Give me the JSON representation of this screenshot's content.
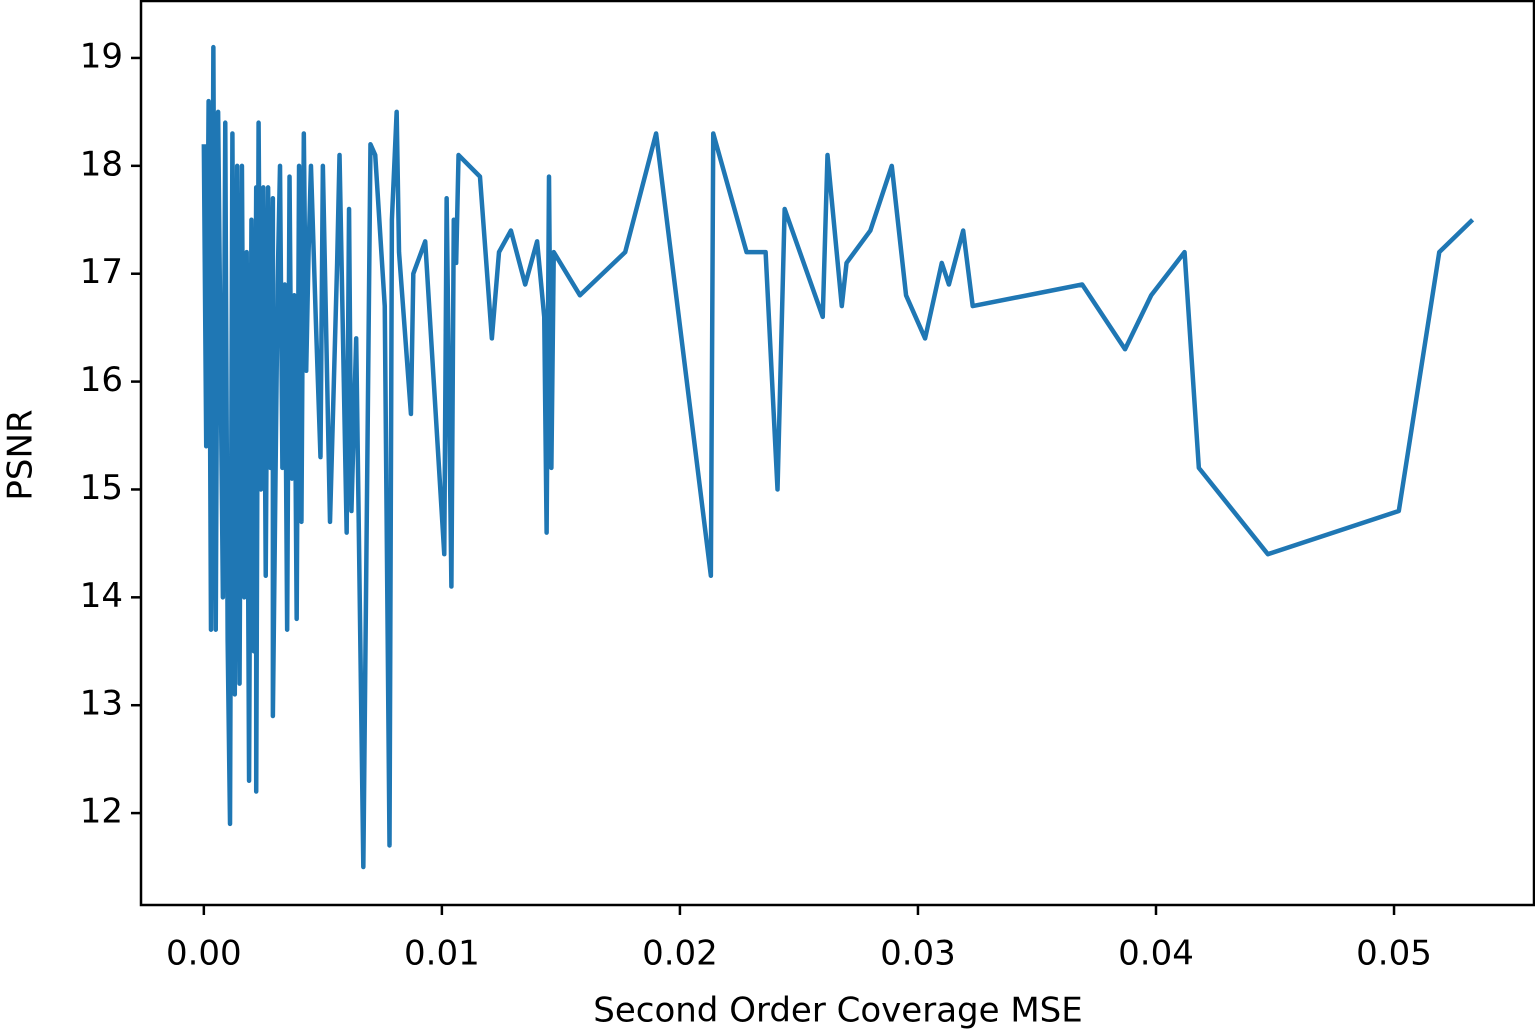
{
  "chart_data": {
    "type": "line",
    "xlabel": "Second Order Coverage MSE",
    "ylabel": "PSNR",
    "xlim": [
      -0.00264,
      0.05588
    ],
    "ylim": [
      11.148,
      19.528
    ],
    "xticks": [
      {
        "value": 0,
        "label": "0.00"
      },
      0.01,
      0.02,
      0.03,
      0.04,
      0.05
    ],
    "yticks": [
      12,
      13,
      14,
      15,
      16,
      17,
      18,
      19
    ],
    "grid": false,
    "x": [
      0.0,
      0.0001,
      0.0002,
      0.0003,
      0.0004,
      0.0005,
      0.0006,
      0.0008,
      0.0009,
      0.001,
      0.0011,
      0.0012,
      0.0013,
      0.0014,
      0.0015,
      0.0016,
      0.0017,
      0.0018,
      0.0019,
      0.002,
      0.0021,
      0.0022,
      0.0022,
      0.0023,
      0.0024,
      0.0025,
      0.0026,
      0.0027,
      0.0028,
      0.0029,
      0.0029,
      0.0031,
      0.0032,
      0.0033,
      0.0034,
      0.0035,
      0.0036,
      0.0037,
      0.0038,
      0.0039,
      0.004,
      0.0041,
      0.0042,
      0.0043,
      0.0044,
      0.0045,
      0.0047,
      0.0049,
      0.005,
      0.0053,
      0.0056,
      0.0057,
      0.006,
      0.0061,
      0.0062,
      0.0064,
      0.0065,
      0.0067,
      0.007,
      0.0072,
      0.0076,
      0.0078,
      0.0079,
      0.0081,
      0.0082,
      0.0087,
      0.0088,
      0.0093,
      0.0101,
      0.0102,
      0.0104,
      0.0105,
      0.0106,
      0.0107,
      0.0116,
      0.0121,
      0.0124,
      0.0129,
      0.0135,
      0.014,
      0.0143,
      0.0144,
      0.0145,
      0.0146,
      0.0147,
      0.0158,
      0.0177,
      0.019,
      0.0213,
      0.0214,
      0.0228,
      0.0236,
      0.0241,
      0.0244,
      0.026,
      0.0262,
      0.0268,
      0.027,
      0.028,
      0.0289,
      0.0295,
      0.0303,
      0.031,
      0.0313,
      0.0319,
      0.0323,
      0.0369,
      0.0387,
      0.0398,
      0.0412,
      0.0418,
      0.0447,
      0.0502,
      0.0519,
      0.0533
    ],
    "series": [
      {
        "color": "#1f77b4",
        "values": [
          18.2,
          15.4,
          18.6,
          13.7,
          19.1,
          13.7,
          18.5,
          14.0,
          18.4,
          13.6,
          11.9,
          18.3,
          13.1,
          18.0,
          13.2,
          18.0,
          14.0,
          17.2,
          12.3,
          17.5,
          13.5,
          17.8,
          12.2,
          18.4,
          15.0,
          17.8,
          14.2,
          17.8,
          15.2,
          17.7,
          12.9,
          16.9,
          18.0,
          15.2,
          16.9,
          13.7,
          17.9,
          15.1,
          16.8,
          13.8,
          18.0,
          14.7,
          18.3,
          16.1,
          17.2,
          18.0,
          16.6,
          15.3,
          18.0,
          14.7,
          17.1,
          18.1,
          14.6,
          17.6,
          14.8,
          16.4,
          14.8,
          11.5,
          18.2,
          18.1,
          16.7,
          11.7,
          17.5,
          18.5,
          17.2,
          15.7,
          17.0,
          17.3,
          14.4,
          17.7,
          14.1,
          17.5,
          17.1,
          18.1,
          17.9,
          16.4,
          17.2,
          17.4,
          16.9,
          17.3,
          16.6,
          14.6,
          17.9,
          15.2,
          17.2,
          16.8,
          17.2,
          18.3,
          14.2,
          18.3,
          17.2,
          17.2,
          15.0,
          17.6,
          16.6,
          18.1,
          16.7,
          17.1,
          17.4,
          18.0,
          16.8,
          16.4,
          17.1,
          16.9,
          17.4,
          16.7,
          16.9,
          16.3,
          16.8,
          17.2,
          15.2,
          14.4,
          14.8,
          17.2,
          17.5
        ]
      }
    ]
  }
}
